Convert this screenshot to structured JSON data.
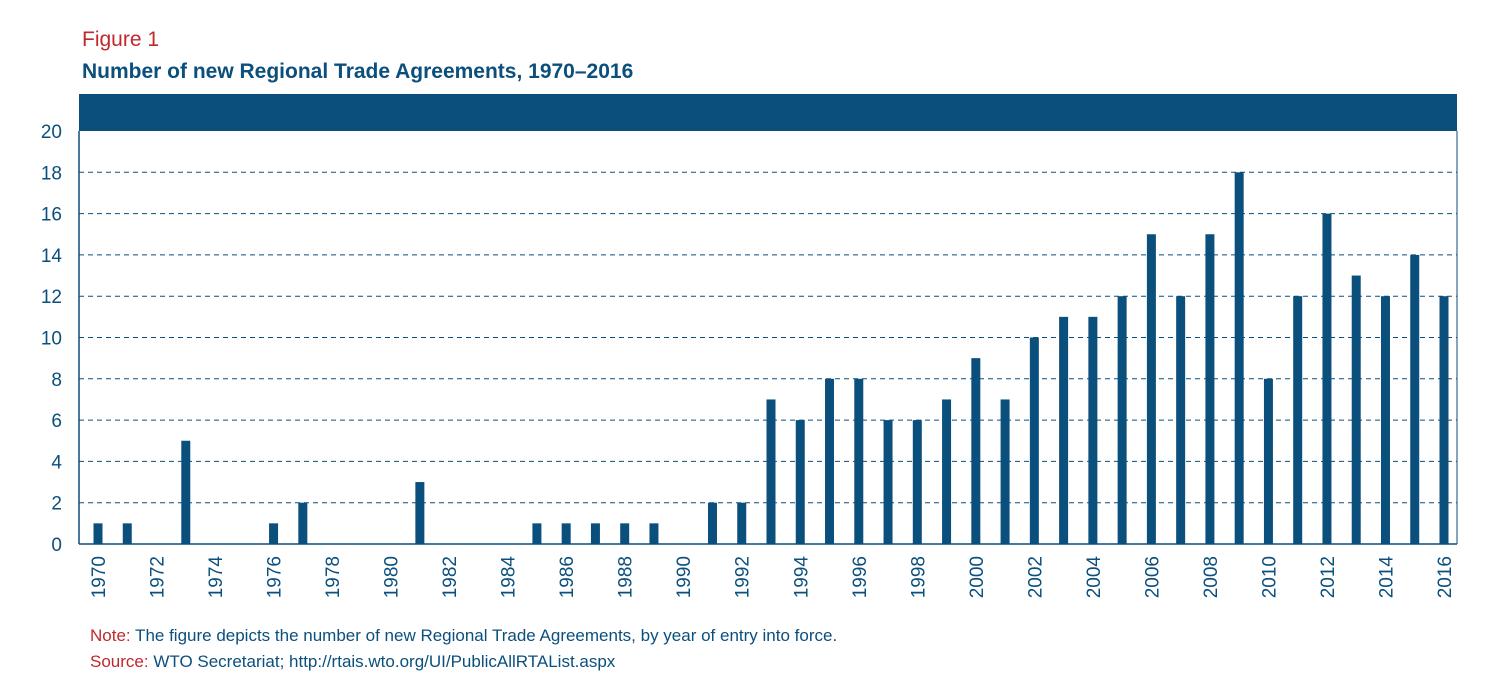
{
  "figure_label": "Figure 1",
  "title": "Number of new Regional Trade Agreements, 1970–2016",
  "note": {
    "label": "Note:",
    "text": " The figure depicts the number of new Regional Trade Agreements, by year of entry into force."
  },
  "source": {
    "label": "Source:",
    "text": " WTO Secretariat; http://rtais.wto.org/UI/PublicAllRTAList.aspx"
  },
  "colors": {
    "bar": "#0b4f7d",
    "header_band": "#0b4f7d",
    "axis_text": "#0b4f7d",
    "figure_label": "#c0282d"
  },
  "chart_data": {
    "type": "bar",
    "title": "Number of new Regional Trade Agreements, 1970–2016",
    "xlabel": "",
    "ylabel": "",
    "ylim": [
      0,
      20
    ],
    "yticks": [
      0,
      2,
      4,
      6,
      8,
      10,
      12,
      14,
      16,
      18,
      20
    ],
    "grid": true,
    "categories": [
      1970,
      1971,
      1972,
      1973,
      1974,
      1975,
      1976,
      1977,
      1978,
      1979,
      1980,
      1981,
      1982,
      1983,
      1984,
      1985,
      1986,
      1987,
      1988,
      1989,
      1990,
      1991,
      1992,
      1993,
      1994,
      1995,
      1996,
      1997,
      1998,
      1999,
      2000,
      2001,
      2002,
      2003,
      2004,
      2005,
      2006,
      2007,
      2008,
      2009,
      2010,
      2011,
      2012,
      2013,
      2014,
      2015,
      2016
    ],
    "xtick_labels": [
      "1970",
      "1972",
      "1974",
      "1976",
      "1978",
      "1980",
      "1982",
      "1984",
      "1986",
      "1988",
      "1990",
      "1992",
      "1994",
      "1996",
      "1998",
      "2000",
      "2002",
      "2004",
      "2006",
      "2008",
      "2010",
      "2012",
      "2014",
      "2016"
    ],
    "values": [
      1,
      1,
      0,
      5,
      0,
      0,
      1,
      2,
      0,
      0,
      0,
      3,
      0,
      0,
      0,
      1,
      1,
      1,
      1,
      1,
      0,
      2,
      2,
      7,
      6,
      8,
      8,
      6,
      6,
      7,
      9,
      7,
      10,
      11,
      11,
      12,
      15,
      12,
      15,
      18,
      8,
      12,
      16,
      13,
      12,
      14,
      12
    ]
  }
}
